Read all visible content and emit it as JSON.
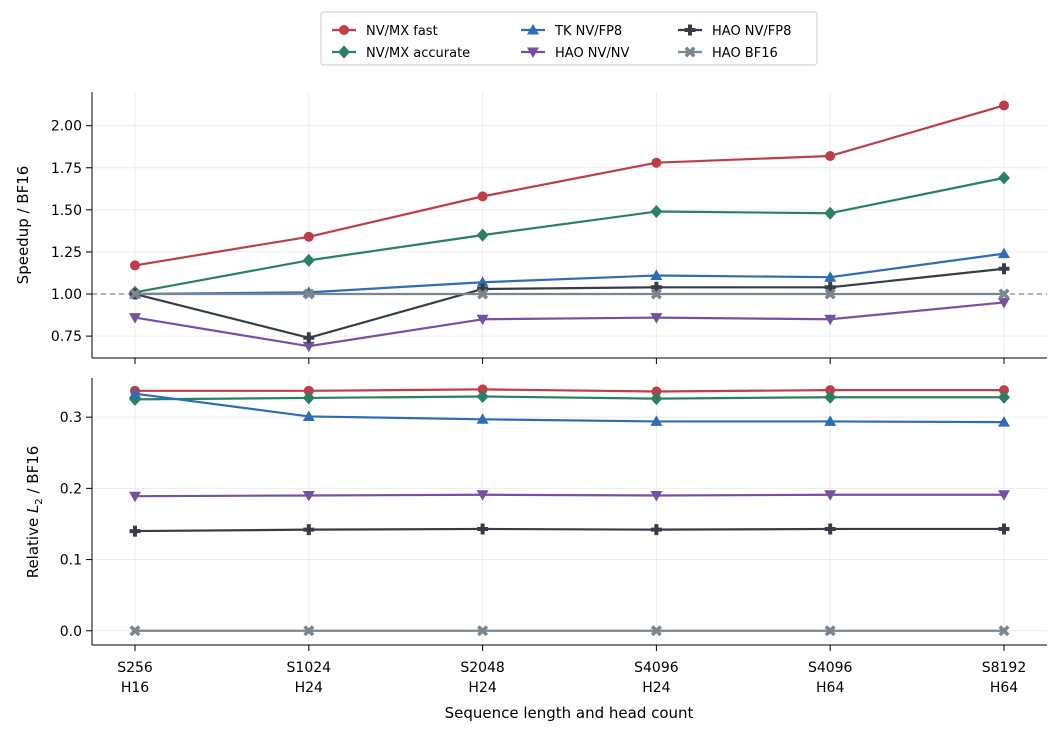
{
  "chart_data": [
    {
      "type": "line",
      "panel": "top",
      "categories": [
        "S256\nH16",
        "S1024\nH24",
        "S2048\nH24",
        "S4096\nH24",
        "S4096\nH64",
        "S8192\nH64"
      ],
      "ylabel": "Speedup / BF16",
      "ylim": [
        0.62,
        2.2
      ],
      "yticks": [
        "0.75",
        "1.00",
        "1.25",
        "1.50",
        "1.75",
        "2.00"
      ],
      "reference_line": 1.0,
      "grid": true,
      "series": [
        {
          "name": "NV/MX fast",
          "color": "#c03d48",
          "marker": "circle",
          "values": [
            1.17,
            1.34,
            1.58,
            1.78,
            1.82,
            2.12
          ]
        },
        {
          "name": "NV/MX accurate",
          "color": "#2a8062",
          "marker": "diamond",
          "values": [
            1.01,
            1.2,
            1.35,
            1.49,
            1.48,
            1.69
          ]
        },
        {
          "name": "TK NV/FP8",
          "color": "#2e6db4",
          "marker": "triangle-up",
          "values": [
            1.0,
            1.01,
            1.07,
            1.11,
            1.1,
            1.24
          ]
        },
        {
          "name": "HAO NV/NV",
          "color": "#7651a0",
          "marker": "triangle-down",
          "values": [
            0.86,
            0.69,
            0.85,
            0.86,
            0.85,
            0.95
          ]
        },
        {
          "name": "HAO NV/FP8",
          "color": "#383d45",
          "marker": "plus",
          "values": [
            1.0,
            0.74,
            1.03,
            1.04,
            1.04,
            1.15
          ]
        },
        {
          "name": "HAO BF16",
          "color": "#7b858d",
          "marker": "x",
          "values": [
            1.0,
            1.0,
            1.0,
            1.0,
            1.0,
            1.0
          ]
        }
      ]
    },
    {
      "type": "line",
      "panel": "bottom",
      "categories": [
        "S256\nH16",
        "S1024\nH24",
        "S2048\nH24",
        "S4096\nH24",
        "S4096\nH64",
        "S8192\nH64"
      ],
      "ylabel": "Relative L2 / BF16",
      "xlabel": "Sequence length and head count",
      "ylim": [
        -0.02,
        0.355
      ],
      "yticks": [
        "0.0",
        "0.1",
        "0.2",
        "0.3"
      ],
      "grid": true,
      "series": [
        {
          "name": "NV/MX fast",
          "color": "#c03d48",
          "marker": "circle",
          "values": [
            0.337,
            0.337,
            0.339,
            0.336,
            0.338,
            0.338
          ]
        },
        {
          "name": "NV/MX accurate",
          "color": "#2a8062",
          "marker": "diamond",
          "values": [
            0.325,
            0.327,
            0.329,
            0.326,
            0.328,
            0.328
          ]
        },
        {
          "name": "TK NV/FP8",
          "color": "#2e6db4",
          "marker": "triangle-up",
          "values": [
            0.333,
            0.301,
            0.297,
            0.294,
            0.294,
            0.293
          ]
        },
        {
          "name": "HAO NV/NV",
          "color": "#7651a0",
          "marker": "triangle-down",
          "values": [
            0.189,
            0.19,
            0.191,
            0.19,
            0.191,
            0.191
          ]
        },
        {
          "name": "HAO NV/FP8",
          "color": "#383d45",
          "marker": "plus",
          "values": [
            0.14,
            0.142,
            0.143,
            0.142,
            0.143,
            0.143
          ]
        },
        {
          "name": "HAO BF16",
          "color": "#7b858d",
          "marker": "x",
          "values": [
            0.0,
            0.0,
            0.0,
            0.0,
            0.0,
            0.0
          ]
        }
      ]
    }
  ],
  "legend": {
    "placement": "top-center",
    "items": [
      {
        "label": "NV/MX fast",
        "color": "#c03d48",
        "marker": "circle"
      },
      {
        "label": "TK NV/FP8",
        "color": "#2e6db4",
        "marker": "triangle-up"
      },
      {
        "label": "HAO NV/FP8",
        "color": "#383d45",
        "marker": "plus"
      },
      {
        "label": "NV/MX accurate",
        "color": "#2a8062",
        "marker": "diamond"
      },
      {
        "label": "HAO NV/NV",
        "color": "#7651a0",
        "marker": "triangle-down"
      },
      {
        "label": "HAO BF16",
        "color": "#7b858d",
        "marker": "x"
      }
    ]
  }
}
